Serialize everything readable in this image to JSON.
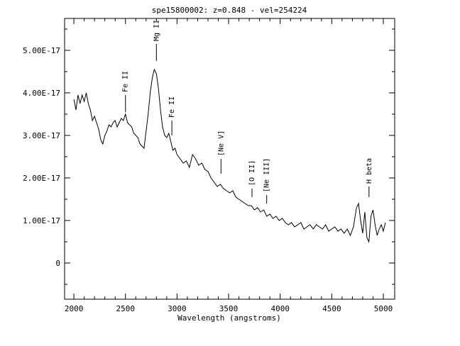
{
  "chart_data": {
    "type": "line",
    "title": "spe15800002: z=0.848 - vel=254224",
    "xlabel": "Wavelength (angstroms)",
    "ylabel": "",
    "xlim": [
      1910,
      5110
    ],
    "ylim": [
      -8.5e-18,
      5.75e-17
    ],
    "x_ticks": [
      2000,
      2500,
      3000,
      3500,
      4000,
      4500,
      5000
    ],
    "x_tick_labels": [
      "2000",
      "2500",
      "3000",
      "3500",
      "4000",
      "4500",
      "5000"
    ],
    "y_ticks": [
      0,
      1e-17,
      2e-17,
      3e-17,
      4e-17,
      5e-17
    ],
    "y_tick_labels": [
      "0",
      "1.00E-17",
      "2.00E-17",
      "3.00E-17",
      "4.00E-17",
      "5.00E-17"
    ],
    "line_markers": [
      {
        "label": "Fe II",
        "wavelength": 2500,
        "y_top": 3.95e-17,
        "y_bottom": 3.55e-17
      },
      {
        "label": "Mg II",
        "wavelength": 2800,
        "y_top": 5.15e-17,
        "y_bottom": 4.75e-17
      },
      {
        "label": "Fe II",
        "wavelength": 2950,
        "y_top": 3.35e-17,
        "y_bottom": 3e-17
      },
      {
        "label": "[Ne V]",
        "wavelength": 3426,
        "y_top": 2.45e-17,
        "y_bottom": 2.1e-17
      },
      {
        "label": "[O II]",
        "wavelength": 3727,
        "y_top": 1.75e-17,
        "y_bottom": 1.55e-17
      },
      {
        "label": "[Ne III]",
        "wavelength": 3869,
        "y_top": 1.6e-17,
        "y_bottom": 1.4e-17
      },
      {
        "label": "H beta",
        "wavelength": 4861,
        "y_top": 1.8e-17,
        "y_bottom": 1.55e-17
      }
    ],
    "series": [
      {
        "x": [
          2000,
          2020,
          2040,
          2060,
          2080,
          2100,
          2120,
          2140,
          2160,
          2180,
          2200,
          2220,
          2240,
          2260,
          2280,
          2300,
          2320,
          2340,
          2360,
          2380,
          2400,
          2420,
          2440,
          2460,
          2480,
          2500,
          2520,
          2540,
          2560,
          2580,
          2600,
          2620,
          2640,
          2660,
          2680,
          2700,
          2720,
          2740,
          2760,
          2780,
          2800,
          2820,
          2840,
          2860,
          2880,
          2900,
          2920,
          2940,
          2960,
          2980,
          3000,
          3030,
          3060,
          3090,
          3120,
          3150,
          3180,
          3210,
          3240,
          3270,
          3300,
          3330,
          3360,
          3390,
          3420,
          3450,
          3480,
          3510,
          3540,
          3570,
          3600,
          3630,
          3660,
          3690,
          3720,
          3750,
          3780,
          3810,
          3840,
          3870,
          3900,
          3930,
          3960,
          3990,
          4020,
          4050,
          4080,
          4110,
          4140,
          4170,
          4200,
          4230,
          4260,
          4290,
          4320,
          4350,
          4380,
          4410,
          4440,
          4470,
          4500,
          4530,
          4560,
          4590,
          4620,
          4650,
          4680,
          4710,
          4740,
          4760,
          4780,
          4800,
          4820,
          4840,
          4860,
          4880,
          4900,
          4920,
          4940,
          4960,
          4980,
          5000,
          5020
        ],
        "y": [
          3.85e-17,
          3.6e-17,
          3.95e-17,
          3.75e-17,
          3.95e-17,
          3.8e-17,
          4e-17,
          3.75e-17,
          3.6e-17,
          3.35e-17,
          3.45e-17,
          3.3e-17,
          3.15e-17,
          2.9e-17,
          2.8e-17,
          3e-17,
          3.1e-17,
          3.25e-17,
          3.2e-17,
          3.3e-17,
          3.35e-17,
          3.2e-17,
          3.3e-17,
          3.4e-17,
          3.35e-17,
          3.5e-17,
          3.3e-17,
          3.25e-17,
          3.2e-17,
          3.05e-17,
          3e-17,
          2.95e-17,
          2.8e-17,
          2.75e-17,
          2.7e-17,
          3.1e-17,
          3.5e-17,
          4e-17,
          4.35e-17,
          4.55e-17,
          4.45e-17,
          4.1e-17,
          3.6e-17,
          3.2e-17,
          3e-17,
          2.95e-17,
          3.05e-17,
          2.85e-17,
          2.65e-17,
          2.7e-17,
          2.55e-17,
          2.45e-17,
          2.35e-17,
          2.4e-17,
          2.25e-17,
          2.55e-17,
          2.45e-17,
          2.3e-17,
          2.35e-17,
          2.2e-17,
          2.15e-17,
          2e-17,
          1.9e-17,
          1.8e-17,
          1.85e-17,
          1.75e-17,
          1.7e-17,
          1.65e-17,
          1.7e-17,
          1.55e-17,
          1.5e-17,
          1.45e-17,
          1.4e-17,
          1.35e-17,
          1.35e-17,
          1.25e-17,
          1.3e-17,
          1.2e-17,
          1.25e-17,
          1.1e-17,
          1.15e-17,
          1.05e-17,
          1.1e-17,
          1e-17,
          1.05e-17,
          9.5e-18,
          9e-18,
          9.5e-18,
          8.5e-18,
          9e-18,
          9.5e-18,
          8e-18,
          8.5e-18,
          9e-18,
          8e-18,
          9e-18,
          8.5e-18,
          8e-18,
          9e-18,
          7.5e-18,
          8e-18,
          8.5e-18,
          7.5e-18,
          8e-18,
          7e-18,
          8e-18,
          6.5e-18,
          8.5e-18,
          1.3e-17,
          1.4e-17,
          1e-17,
          7e-18,
          1.2e-17,
          6e-18,
          5e-18,
          1.1e-17,
          1.25e-17,
          9e-18,
          6.5e-18,
          8e-18,
          9e-18,
          7.5e-18,
          9.5e-18
        ]
      }
    ]
  }
}
